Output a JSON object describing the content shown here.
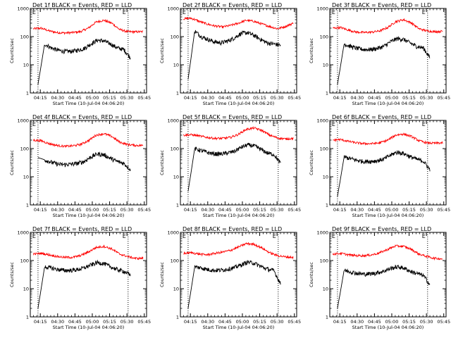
{
  "chart_data": [
    {
      "type": "line",
      "title": "Det 1f BLACK = Events, RED = LLD",
      "xlabel": "Start Time (10-Jul-04 04:06:20)",
      "ylabel": "Counts/sec",
      "yscale": "log",
      "ylim": [
        1,
        1000
      ],
      "yticks": [
        "1",
        "10",
        "100",
        "1000"
      ],
      "xticks": [
        "04:15",
        "04:30",
        "04:45",
        "05:00",
        "05:15",
        "05:30",
        "05:45"
      ],
      "xlim": [
        "04:06:20",
        "05:47:00"
      ],
      "markers": [
        {
          "label": "E",
          "time": "04:13"
        },
        {
          "label": "E",
          "time": "05:31"
        }
      ],
      "series": [
        {
          "color": "#ff0000",
          "start": "04:09",
          "end": "05:44",
          "values": [
            190,
            200,
            160,
            140,
            135,
            140,
            150,
            200,
            330,
            380,
            300,
            180,
            150,
            148,
            150
          ]
        },
        {
          "color": "#000000",
          "start": "04:13",
          "end": "05:33",
          "values": [
            2,
            55,
            40,
            33,
            30,
            30,
            33,
            38,
            55,
            75,
            70,
            55,
            40,
            35,
            18
          ]
        }
      ]
    },
    {
      "type": "line",
      "title": "Det 2f BLACK = Events, RED = LLD",
      "xlabel": "Start Time (10-Jul-04 04:06:20)",
      "ylabel": "Counts/sec",
      "yscale": "log",
      "ylim": [
        1,
        1000
      ],
      "yticks": [
        "1",
        "10",
        "100",
        "1000"
      ],
      "xticks": [
        "04:15",
        "04:30",
        "04:45",
        "05:00",
        "05:15",
        "05:30",
        "05:45"
      ],
      "xlim": [
        "04:06:20",
        "05:47:00"
      ],
      "markers": [
        {
          "label": "E",
          "time": "04:13"
        },
        {
          "label": "E",
          "time": "05:31"
        }
      ],
      "series": [
        {
          "color": "#ff0000",
          "start": "04:09",
          "end": "05:44",
          "values": [
            430,
            450,
            350,
            280,
            240,
            220,
            250,
            300,
            380,
            350,
            280,
            230,
            190,
            230,
            300
          ]
        },
        {
          "color": "#000000",
          "start": "04:13",
          "end": "05:33",
          "values": [
            3,
            160,
            100,
            80,
            65,
            60,
            70,
            90,
            130,
            140,
            110,
            80,
            60,
            55,
            50
          ]
        }
      ]
    },
    {
      "type": "line",
      "title": "Det 3f BLACK = Events, RED = LLD",
      "xlabel": "Start Time (10-Jul-04 04:06:20)",
      "ylabel": "Counts/sec",
      "yscale": "log",
      "ylim": [
        1,
        1000
      ],
      "yticks": [
        "1",
        "10",
        "100",
        "1000"
      ],
      "xticks": [
        "04:15",
        "04:30",
        "04:45",
        "05:00",
        "05:15",
        "05:30",
        "05:45"
      ],
      "xlim": [
        "04:06:20",
        "05:47:00"
      ],
      "markers": [
        {
          "label": "E",
          "time": "04:13"
        },
        {
          "label": "E",
          "time": "05:31"
        }
      ],
      "series": [
        {
          "color": "#ff0000",
          "start": "04:09",
          "end": "05:44",
          "values": [
            200,
            210,
            170,
            145,
            140,
            145,
            160,
            210,
            340,
            400,
            310,
            190,
            160,
            150,
            155
          ]
        },
        {
          "color": "#000000",
          "start": "04:13",
          "end": "05:33",
          "values": [
            2,
            55,
            45,
            38,
            35,
            35,
            38,
            45,
            65,
            85,
            80,
            60,
            45,
            40,
            18
          ]
        }
      ]
    },
    {
      "type": "line",
      "title": "Det 4f BLACK = Events, RED = LLD",
      "xlabel": "Start Time (10-Jul-04 04:06:20)",
      "ylabel": "Counts/sec",
      "yscale": "log",
      "ylim": [
        1,
        1000
      ],
      "yticks": [
        "1",
        "10",
        "100",
        "1000"
      ],
      "xticks": [
        "04:15",
        "04:30",
        "04:45",
        "05:00",
        "05:15",
        "05:30",
        "05:45"
      ],
      "xlim": [
        "04:06:20",
        "05:47:00"
      ],
      "markers": [
        {
          "label": "E",
          "time": "04:13"
        },
        {
          "label": "E",
          "time": "05:31"
        }
      ],
      "series": [
        {
          "color": "#ff0000",
          "start": "04:09",
          "end": "05:44",
          "values": [
            200,
            190,
            150,
            130,
            120,
            125,
            140,
            190,
            300,
            340,
            270,
            170,
            140,
            130,
            130
          ]
        },
        {
          "color": "#000000",
          "start": "04:13",
          "end": "05:33",
          "values": [
            48,
            40,
            33,
            28,
            27,
            28,
            30,
            35,
            50,
            65,
            60,
            45,
            35,
            30,
            18
          ]
        }
      ]
    },
    {
      "type": "line",
      "title": "Det 5f BLACK = Events, RED = LLD",
      "xlabel": "Start Time (10-Jul-04 04:06:20)",
      "ylabel": "Counts/sec",
      "yscale": "log",
      "ylim": [
        1,
        1000
      ],
      "yticks": [
        "1",
        "10",
        "100",
        "1000"
      ],
      "xticks": [
        "04:15",
        "04:30",
        "04:45",
        "05:00",
        "05:15",
        "05:30",
        "05:45"
      ],
      "xlim": [
        "04:06:20",
        "05:47:00"
      ],
      "markers": [
        {
          "label": "E",
          "time": "04:13"
        },
        {
          "label": "E",
          "time": "05:31"
        }
      ],
      "series": [
        {
          "color": "#ff0000",
          "start": "04:09",
          "end": "05:44",
          "values": [
            300,
            310,
            280,
            250,
            230,
            230,
            250,
            320,
            480,
            540,
            440,
            300,
            240,
            220,
            230
          ]
        },
        {
          "color": "#000000",
          "start": "04:13",
          "end": "05:33",
          "values": [
            3,
            100,
            85,
            72,
            65,
            65,
            70,
            80,
            110,
            135,
            125,
            95,
            70,
            62,
            30
          ]
        }
      ]
    },
    {
      "type": "line",
      "title": "Det 6f BLACK = Events, RED = LLD",
      "xlabel": "Start Time (10-Jul-04 04:06:20)",
      "ylabel": "Counts/sec",
      "yscale": "log",
      "ylim": [
        1,
        1000
      ],
      "yticks": [
        "1",
        "10",
        "100",
        "1000"
      ],
      "xticks": [
        "04:15",
        "04:30",
        "04:45",
        "05:00",
        "05:15",
        "05:30",
        "05:45"
      ],
      "xlim": [
        "04:06:20",
        "05:47:00"
      ],
      "markers": [
        {
          "label": "E",
          "time": "04:13"
        },
        {
          "label": "E",
          "time": "05:31"
        }
      ],
      "series": [
        {
          "color": "#ff0000",
          "start": "04:09",
          "end": "05:44",
          "values": [
            200,
            210,
            180,
            160,
            150,
            150,
            160,
            200,
            300,
            330,
            270,
            190,
            160,
            155,
            160
          ]
        },
        {
          "color": "#000000",
          "start": "04:13",
          "end": "05:33",
          "values": [
            2,
            50,
            44,
            38,
            35,
            35,
            37,
            42,
            58,
            75,
            68,
            52,
            42,
            36,
            18
          ]
        }
      ]
    },
    {
      "type": "line",
      "title": "Det 7f BLACK = Events, RED = LLD",
      "xlabel": "Start Time (10-Jul-04 04:06:20)",
      "ylabel": "Counts/sec",
      "yscale": "log",
      "ylim": [
        1,
        1000
      ],
      "yticks": [
        "1",
        "10",
        "100",
        "1000"
      ],
      "xticks": [
        "04:15",
        "04:30",
        "04:45",
        "05:00",
        "05:15",
        "05:30",
        "05:45"
      ],
      "xlim": [
        "04:06:20",
        "05:47:00"
      ],
      "markers": [
        {
          "label": "E",
          "time": "04:13"
        },
        {
          "label": "E",
          "time": "05:31"
        }
      ],
      "series": [
        {
          "color": "#ff0000",
          "start": "04:09",
          "end": "05:44",
          "values": [
            170,
            180,
            160,
            140,
            130,
            130,
            150,
            200,
            290,
            320,
            260,
            170,
            140,
            120,
            120
          ]
        },
        {
          "color": "#000000",
          "start": "04:13",
          "end": "05:33",
          "values": [
            2,
            60,
            55,
            48,
            45,
            45,
            48,
            55,
            70,
            85,
            78,
            60,
            48,
            42,
            30
          ]
        }
      ]
    },
    {
      "type": "line",
      "title": "Det 8f BLACK = Events, RED = LLD",
      "xlabel": "Start Time (10-Jul-04 04:06:20)",
      "ylabel": "Counts/sec",
      "yscale": "log",
      "ylim": [
        1,
        1000
      ],
      "yticks": [
        "1",
        "10",
        "100",
        "1000"
      ],
      "xticks": [
        "04:15",
        "04:30",
        "04:45",
        "05:00",
        "05:15",
        "05:30",
        "05:45"
      ],
      "xlim": [
        "04:06:20",
        "05:47:00"
      ],
      "markers": [
        {
          "label": "E",
          "time": "04:13"
        },
        {
          "label": "E",
          "time": "05:31"
        }
      ],
      "series": [
        {
          "color": "#ff0000",
          "start": "04:09",
          "end": "05:44",
          "values": [
            180,
            190,
            170,
            160,
            180,
            200,
            230,
            300,
            400,
            380,
            280,
            190,
            150,
            135,
            130
          ]
        },
        {
          "color": "#000000",
          "start": "04:13",
          "end": "05:33",
          "values": [
            2,
            60,
            55,
            48,
            45,
            46,
            50,
            56,
            70,
            88,
            82,
            62,
            50,
            44,
            15
          ]
        }
      ]
    },
    {
      "type": "line",
      "title": "Det 9f BLACK = Events, RED = LLD",
      "xlabel": "Start Time (10-Jul-04 04:06:20)",
      "ylabel": "Counts/sec",
      "yscale": "log",
      "ylim": [
        1,
        1000
      ],
      "yticks": [
        "1",
        "10",
        "100",
        "1000"
      ],
      "xticks": [
        "04:15",
        "04:30",
        "04:45",
        "05:00",
        "05:15",
        "05:30",
        "05:45"
      ],
      "xlim": [
        "04:06:20",
        "05:47:00"
      ],
      "markers": [
        {
          "label": "E",
          "time": "04:13"
        },
        {
          "label": "E",
          "time": "05:31"
        }
      ],
      "series": [
        {
          "color": "#ff0000",
          "start": "04:09",
          "end": "05:44",
          "values": [
            170,
            180,
            160,
            150,
            150,
            160,
            190,
            250,
            330,
            320,
            250,
            170,
            140,
            120,
            115
          ]
        },
        {
          "color": "#000000",
          "start": "04:13",
          "end": "05:33",
          "values": [
            2,
            45,
            40,
            35,
            33,
            34,
            37,
            42,
            52,
            60,
            55,
            42,
            35,
            30,
            14
          ]
        }
      ]
    }
  ]
}
